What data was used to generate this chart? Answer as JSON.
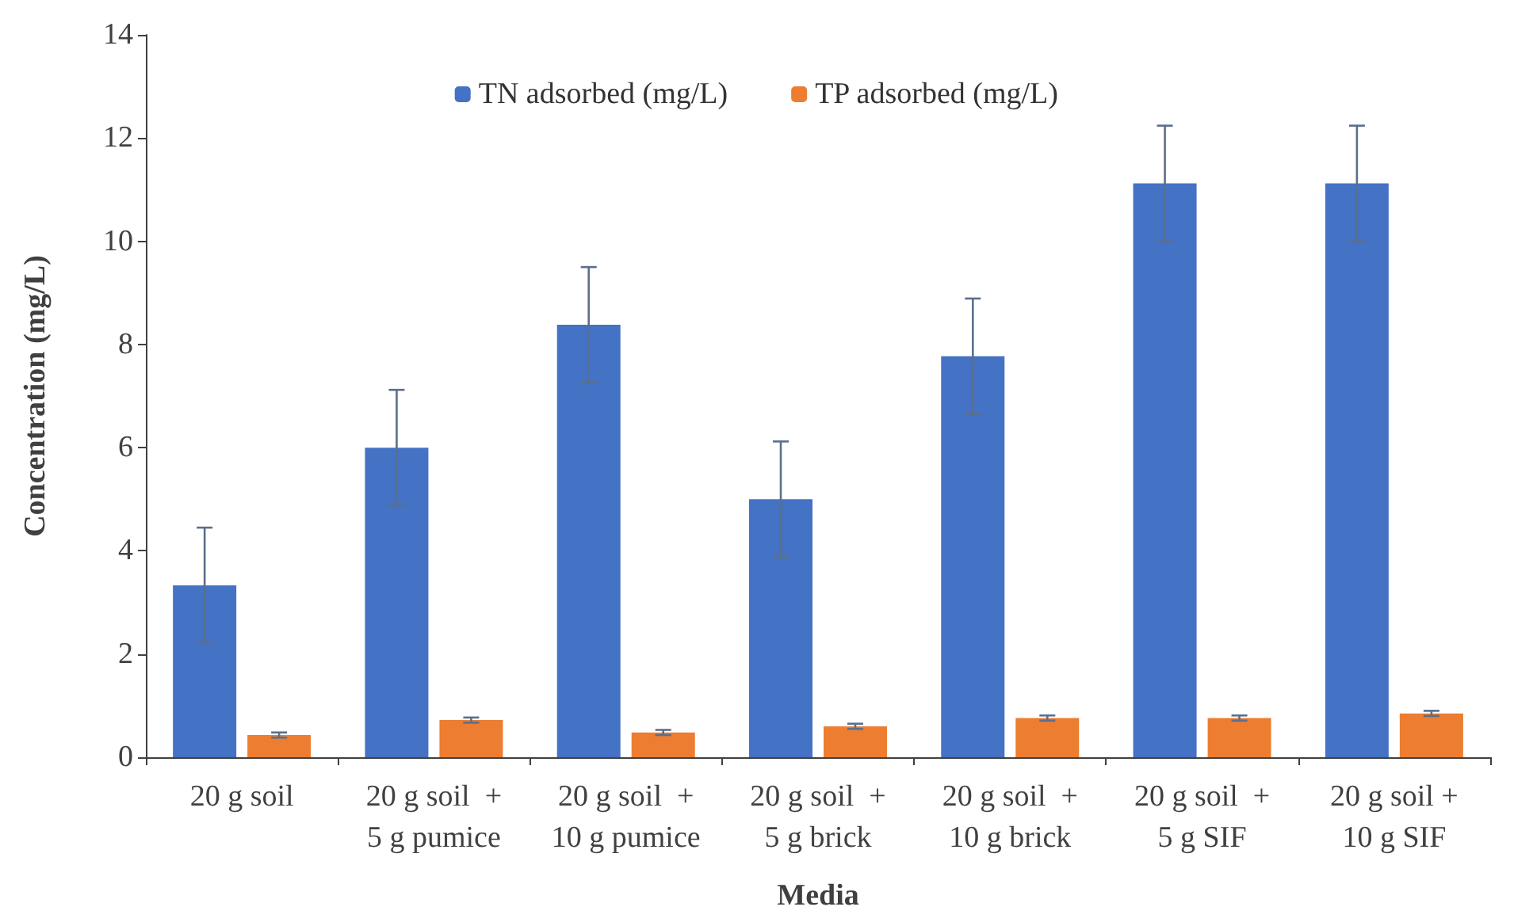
{
  "chart_data": {
    "type": "bar",
    "xlabel": "Media",
    "ylabel": "Concentration (mg/L)",
    "categories": [
      "20 g soil",
      "20 g soil  +\n5 g pumice",
      "20 g soil  +\n10 g pumice",
      "20 g soil  +\n5 g brick",
      "20 g soil  +\n10 g brick",
      "20 g soil  +\n5 g SIF",
      "20 g soil +\n10 g SIF"
    ],
    "series": [
      {
        "name": "TN adsorbed (mg/L)",
        "color": "#4472c4",
        "values": [
          3.33,
          6.0,
          8.38,
          5.0,
          7.77,
          11.12,
          11.12
        ],
        "errors": [
          1.12,
          1.12,
          1.12,
          1.12,
          1.12,
          1.12,
          1.12
        ]
      },
      {
        "name": "TP adsorbed (mg/L)",
        "color": "#ed7d31",
        "values": [
          0.43,
          0.72,
          0.48,
          0.6,
          0.76,
          0.76,
          0.85
        ],
        "errors": [
          0.05,
          0.05,
          0.05,
          0.05,
          0.05,
          0.05,
          0.05
        ]
      }
    ],
    "ylim": [
      0,
      14
    ],
    "yticks": [
      0,
      2,
      4,
      6,
      8,
      10,
      12,
      14
    ],
    "grid": false,
    "legend": "top"
  }
}
